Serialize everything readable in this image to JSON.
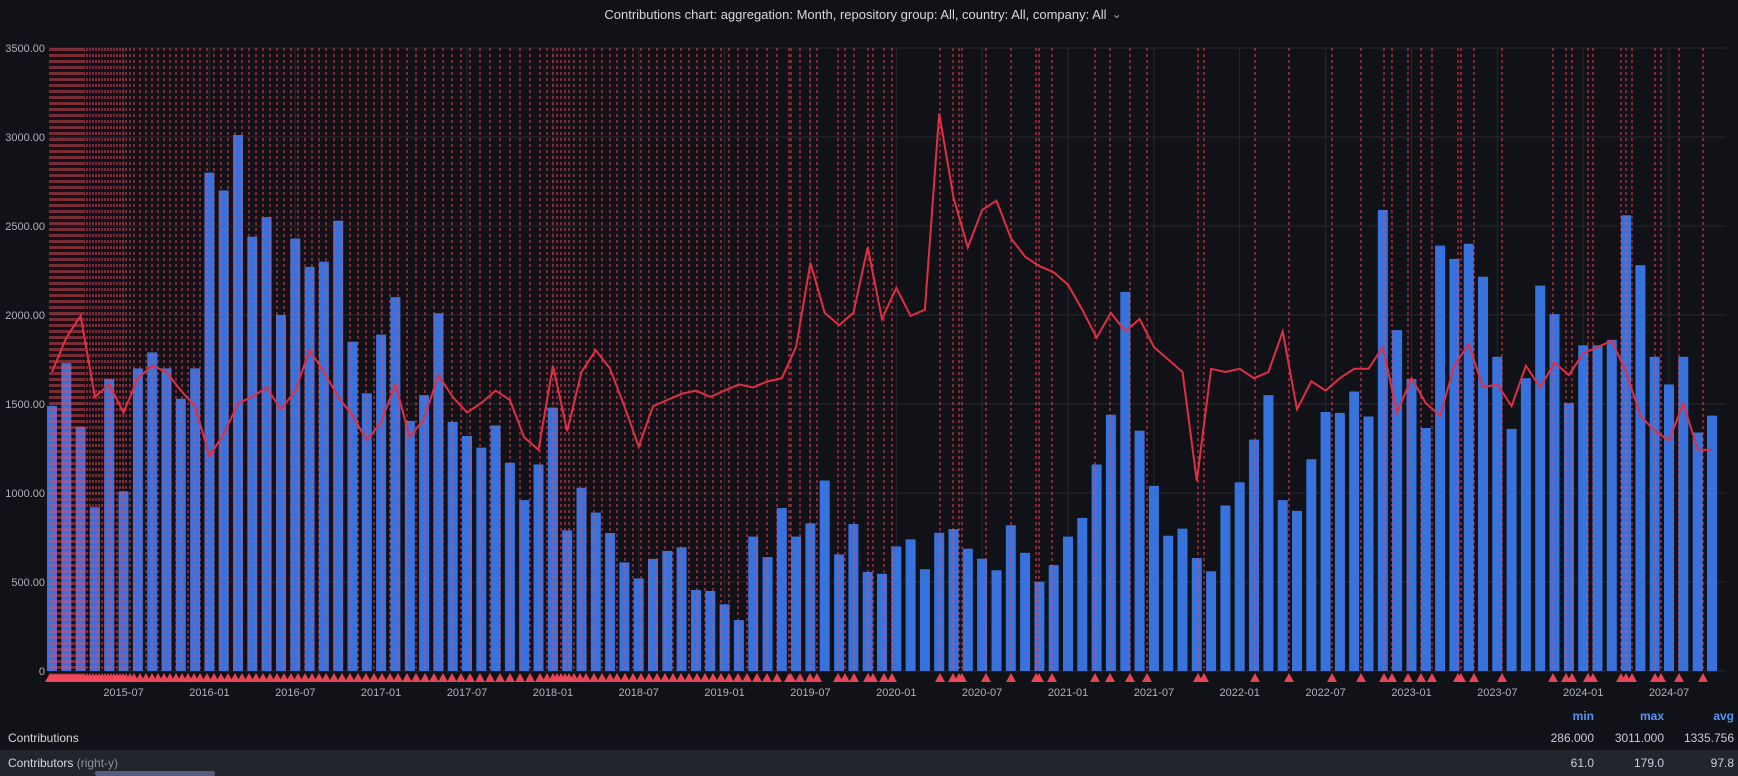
{
  "title": "Contributions chart: aggregation: Month, repository group: All, country: All, company: All",
  "colors": {
    "background": "#111217",
    "bar": "#3872dc",
    "line": "#e02f44",
    "annotation": "#f2495c",
    "accent": "#5794f2",
    "grid": "#26282d"
  },
  "chart_data": {
    "type": "bar",
    "title": "Contributions chart: aggregation: Month, repository group: All, country: All, company: All",
    "xlabel": "",
    "ylabel": "",
    "grid": true,
    "left_axis": {
      "min": 0,
      "max": 3500,
      "ticks": [
        "3500.00",
        "3000.00",
        "2500.00",
        "2000.00",
        "1500.00",
        "1000.00",
        "500.00",
        "0"
      ]
    },
    "right_axis": {
      "min": 0,
      "max": 200
    },
    "x_tick_labels": [
      "2015-07",
      "2016-01",
      "2016-07",
      "2017-01",
      "2017-07",
      "2018-01",
      "2018-07",
      "2019-01",
      "2019-07",
      "2020-01",
      "2020-07",
      "2021-01",
      "2021-07",
      "2022-01",
      "2022-07",
      "2023-01",
      "2023-07",
      "2024-01",
      "2024-07"
    ],
    "months": [
      "2015-02",
      "2015-03",
      "2015-04",
      "2015-05",
      "2015-06",
      "2015-07",
      "2015-08",
      "2015-09",
      "2015-10",
      "2015-11",
      "2015-12",
      "2016-01",
      "2016-02",
      "2016-03",
      "2016-04",
      "2016-05",
      "2016-06",
      "2016-07",
      "2016-08",
      "2016-09",
      "2016-10",
      "2016-11",
      "2016-12",
      "2017-01",
      "2017-02",
      "2017-03",
      "2017-04",
      "2017-05",
      "2017-06",
      "2017-07",
      "2017-08",
      "2017-09",
      "2017-10",
      "2017-11",
      "2017-12",
      "2018-01",
      "2018-02",
      "2018-03",
      "2018-04",
      "2018-05",
      "2018-06",
      "2018-07",
      "2018-08",
      "2018-09",
      "2018-10",
      "2018-11",
      "2018-12",
      "2019-01",
      "2019-02",
      "2019-03",
      "2019-04",
      "2019-05",
      "2019-06",
      "2019-07",
      "2019-08",
      "2019-09",
      "2019-10",
      "2019-11",
      "2019-12",
      "2020-01",
      "2020-02",
      "2020-03",
      "2020-04",
      "2020-05",
      "2020-06",
      "2020-07",
      "2020-08",
      "2020-09",
      "2020-10",
      "2020-11",
      "2020-12",
      "2021-01",
      "2021-02",
      "2021-03",
      "2021-04",
      "2021-05",
      "2021-06",
      "2021-07",
      "2021-08",
      "2021-09",
      "2021-10",
      "2021-11",
      "2021-12",
      "2022-01",
      "2022-02",
      "2022-03",
      "2022-04",
      "2022-05",
      "2022-06",
      "2022-07",
      "2022-08",
      "2022-09",
      "2022-10",
      "2022-11",
      "2022-12",
      "2023-01",
      "2023-02",
      "2023-03",
      "2023-04",
      "2023-05",
      "2023-06",
      "2023-07",
      "2023-08",
      "2023-09",
      "2023-10",
      "2023-11",
      "2023-12",
      "2024-01",
      "2024-02",
      "2024-03",
      "2024-04",
      "2024-05",
      "2024-06",
      "2024-07",
      "2024-08",
      "2024-09",
      "2024-10"
    ],
    "series": [
      {
        "name": "Contributions",
        "type": "bar",
        "axis": "left",
        "color": "#3872dc",
        "values": [
          1490,
          1730,
          1370,
          920,
          1640,
          1010,
          1700,
          1790,
          1700,
          1530,
          1700,
          2800,
          2700,
          3011,
          2440,
          2550,
          2000,
          2430,
          2270,
          2300,
          2530,
          1850,
          1560,
          1890,
          2100,
          1405,
          1550,
          2010,
          1400,
          1320,
          1255,
          1380,
          1170,
          960,
          1160,
          1480,
          790,
          1030,
          890,
          775,
          610,
          520,
          630,
          675,
          695,
          455,
          450,
          375,
          286,
          755,
          640,
          915,
          755,
          830,
          1070,
          655,
          825,
          557,
          546,
          700,
          740,
          572,
          777,
          797,
          687,
          631,
          566,
          819,
          664,
          502,
          595,
          755,
          860,
          1160,
          1440,
          2130,
          1350,
          1040,
          760,
          800,
          635,
          560,
          930,
          1060,
          1300,
          1550,
          960,
          900,
          1190,
          1455,
          1450,
          1570,
          1430,
          2590,
          1915,
          1640,
          1365,
          2390,
          2315,
          2400,
          2215,
          1765,
          1360,
          1645,
          2165,
          2005,
          1505,
          1830,
          1830,
          1860,
          2560,
          2280,
          1765,
          1610,
          1765,
          1340,
          1435
        ]
      },
      {
        "name": "Contributors",
        "type": "line",
        "axis": "right",
        "color": "#e02f44",
        "values": [
          96,
          107,
          114,
          88,
          92,
          83,
          94,
          98,
          96,
          90,
          85,
          69,
          76,
          86,
          88,
          91,
          84,
          90,
          103,
          96,
          88,
          82,
          74,
          80,
          92,
          75,
          81,
          95,
          88,
          83,
          86,
          90,
          87,
          75,
          71,
          98,
          77,
          96,
          103,
          97,
          85,
          72,
          85,
          87,
          89,
          90,
          88,
          90,
          92,
          91,
          93,
          94,
          104,
          131,
          115,
          111,
          115,
          136,
          113,
          123,
          114,
          116,
          179,
          152,
          136,
          148,
          151,
          139,
          133,
          130,
          128,
          124,
          116,
          107,
          115,
          109,
          113,
          104,
          100,
          96,
          61,
          97,
          96,
          97,
          94,
          96,
          109,
          84,
          93,
          90,
          94,
          97,
          97,
          104,
          83,
          94,
          86,
          82,
          98,
          105,
          91,
          92,
          85,
          98,
          91,
          99,
          95,
          102,
          104,
          106,
          96,
          82,
          77,
          74,
          86,
          71,
          71
        ]
      }
    ],
    "annotation_color": "#f2495c",
    "annotations_x": [
      50,
      52,
      54,
      56,
      58,
      60,
      62,
      64,
      66,
      68,
      70,
      72,
      74,
      76,
      78,
      80,
      82,
      84,
      87,
      90,
      93,
      96,
      99,
      102,
      105,
      108,
      111,
      114,
      117,
      120,
      123,
      126,
      130,
      134,
      140,
      146,
      152,
      158,
      164,
      170,
      176,
      182,
      188,
      194,
      200,
      207,
      214,
      221,
      228,
      235,
      242,
      249,
      256,
      263,
      270,
      277,
      284,
      291,
      298,
      305,
      312,
      319,
      326,
      334,
      342,
      350,
      358,
      366,
      374,
      382,
      390,
      398,
      407,
      416,
      425,
      434,
      443,
      452,
      461,
      470,
      480,
      490,
      500,
      510,
      520,
      530,
      540,
      547,
      553,
      557,
      561,
      565,
      569,
      574,
      580,
      586,
      594,
      602,
      610,
      617,
      625,
      633,
      641,
      649,
      657,
      665,
      673,
      681,
      689,
      697,
      705,
      713,
      721,
      729,
      738,
      747,
      757,
      767,
      777,
      789,
      791,
      800,
      810,
      817,
      838,
      845,
      854,
      868,
      873,
      884,
      892,
      940,
      953,
      959,
      962,
      986,
      1011,
      1036,
      1039,
      1052,
      1095,
      1110,
      1130,
      1147,
      1198,
      1204,
      1255,
      1289,
      1332,
      1361,
      1384,
      1392,
      1408,
      1421,
      1432,
      1458,
      1461,
      1474,
      1502,
      1553,
      1566,
      1572,
      1588,
      1593,
      1621,
      1626,
      1632,
      1655,
      1661,
      1679,
      1703
    ]
  },
  "legend": {
    "columns": [
      "min",
      "max",
      "avg"
    ],
    "rows": [
      {
        "label": "Contributions",
        "suffix": "",
        "min": "286.000",
        "max": "3011.000",
        "avg": "1335.756"
      },
      {
        "label": "Contributors",
        "suffix": "(right-y)",
        "min": "61.0",
        "max": "179.0",
        "avg": "97.8"
      }
    ]
  }
}
